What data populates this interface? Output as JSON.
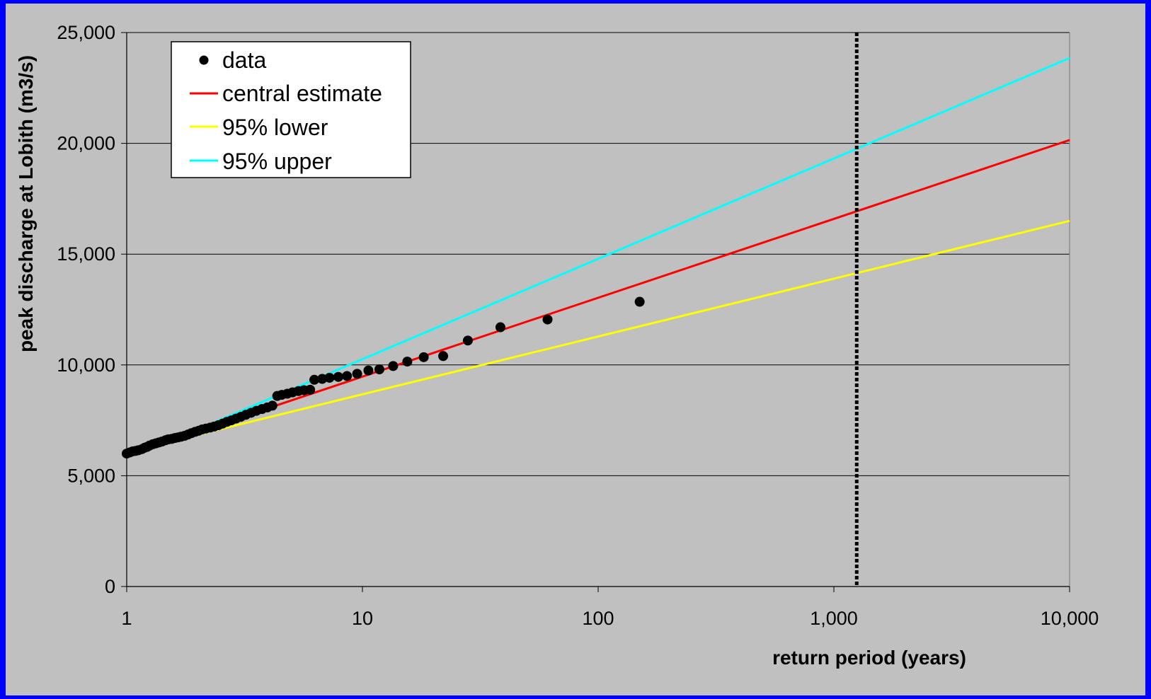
{
  "chart_data": {
    "type": "scatter",
    "xscale": "log",
    "xlim": [
      1,
      10000
    ],
    "ylim": [
      0,
      25000
    ],
    "xlabel": "return period (years)",
    "ylabel": "peak discharge at Lobith (m3/s)",
    "xticks": [
      1,
      10,
      100,
      1000,
      10000
    ],
    "xtick_labels": [
      "1",
      "10",
      "100",
      "1,000",
      "10,000"
    ],
    "yticks": [
      0,
      5000,
      10000,
      15000,
      20000,
      25000
    ],
    "ytick_labels": [
      "0",
      "5,000",
      "10,000",
      "15,000",
      "20,000",
      "25,000"
    ],
    "grid": "horizontal",
    "legend_position": "top-left",
    "reference_line_x": 1250,
    "series": [
      {
        "name": "data",
        "kind": "points",
        "color": "#000000",
        "points": [
          [
            1.0,
            6000
          ],
          [
            1.03,
            6050
          ],
          [
            1.06,
            6100
          ],
          [
            1.09,
            6120
          ],
          [
            1.12,
            6150
          ],
          [
            1.16,
            6200
          ],
          [
            1.19,
            6260
          ],
          [
            1.22,
            6300
          ],
          [
            1.25,
            6360
          ],
          [
            1.29,
            6420
          ],
          [
            1.33,
            6460
          ],
          [
            1.37,
            6500
          ],
          [
            1.41,
            6540
          ],
          [
            1.46,
            6600
          ],
          [
            1.5,
            6640
          ],
          [
            1.55,
            6660
          ],
          [
            1.6,
            6700
          ],
          [
            1.65,
            6730
          ],
          [
            1.7,
            6760
          ],
          [
            1.76,
            6800
          ],
          [
            1.82,
            6860
          ],
          [
            1.88,
            6920
          ],
          [
            1.95,
            6980
          ],
          [
            2.02,
            7030
          ],
          [
            2.09,
            7090
          ],
          [
            2.17,
            7130
          ],
          [
            2.26,
            7170
          ],
          [
            2.35,
            7220
          ],
          [
            2.45,
            7280
          ],
          [
            2.55,
            7350
          ],
          [
            2.66,
            7430
          ],
          [
            2.78,
            7500
          ],
          [
            2.91,
            7580
          ],
          [
            3.05,
            7660
          ],
          [
            3.2,
            7750
          ],
          [
            3.37,
            7840
          ],
          [
            3.55,
            7930
          ],
          [
            3.75,
            8010
          ],
          [
            3.95,
            8080
          ],
          [
            4.15,
            8160
          ],
          [
            4.35,
            8600
          ],
          [
            4.55,
            8650
          ],
          [
            4.8,
            8700
          ],
          [
            5.05,
            8760
          ],
          [
            5.35,
            8820
          ],
          [
            5.65,
            8860
          ],
          [
            6.0,
            8880
          ],
          [
            6.25,
            9330
          ],
          [
            6.75,
            9370
          ],
          [
            7.25,
            9420
          ],
          [
            7.9,
            9460
          ],
          [
            8.6,
            9500
          ],
          [
            9.5,
            9600
          ],
          [
            10.6,
            9750
          ],
          [
            11.8,
            9800
          ],
          [
            13.5,
            9950
          ],
          [
            15.5,
            10150
          ],
          [
            18.2,
            10350
          ],
          [
            22.0,
            10400
          ],
          [
            28.0,
            11100
          ],
          [
            38.5,
            11700
          ],
          [
            61.0,
            12050
          ],
          [
            150,
            12850
          ]
        ]
      },
      {
        "name": "central estimate",
        "kind": "line",
        "color": "#ff0000",
        "points": [
          [
            2.2,
            7130
          ],
          [
            10000,
            20150
          ]
        ]
      },
      {
        "name": "95% lower",
        "kind": "line",
        "color": "#ffff00",
        "points": [
          [
            2.0,
            6850
          ],
          [
            10000,
            16500
          ]
        ]
      },
      {
        "name": "95% upper",
        "kind": "line",
        "color": "#00ffff",
        "points": [
          [
            2.2,
            7280
          ],
          [
            10000,
            23850
          ]
        ]
      }
    ]
  }
}
